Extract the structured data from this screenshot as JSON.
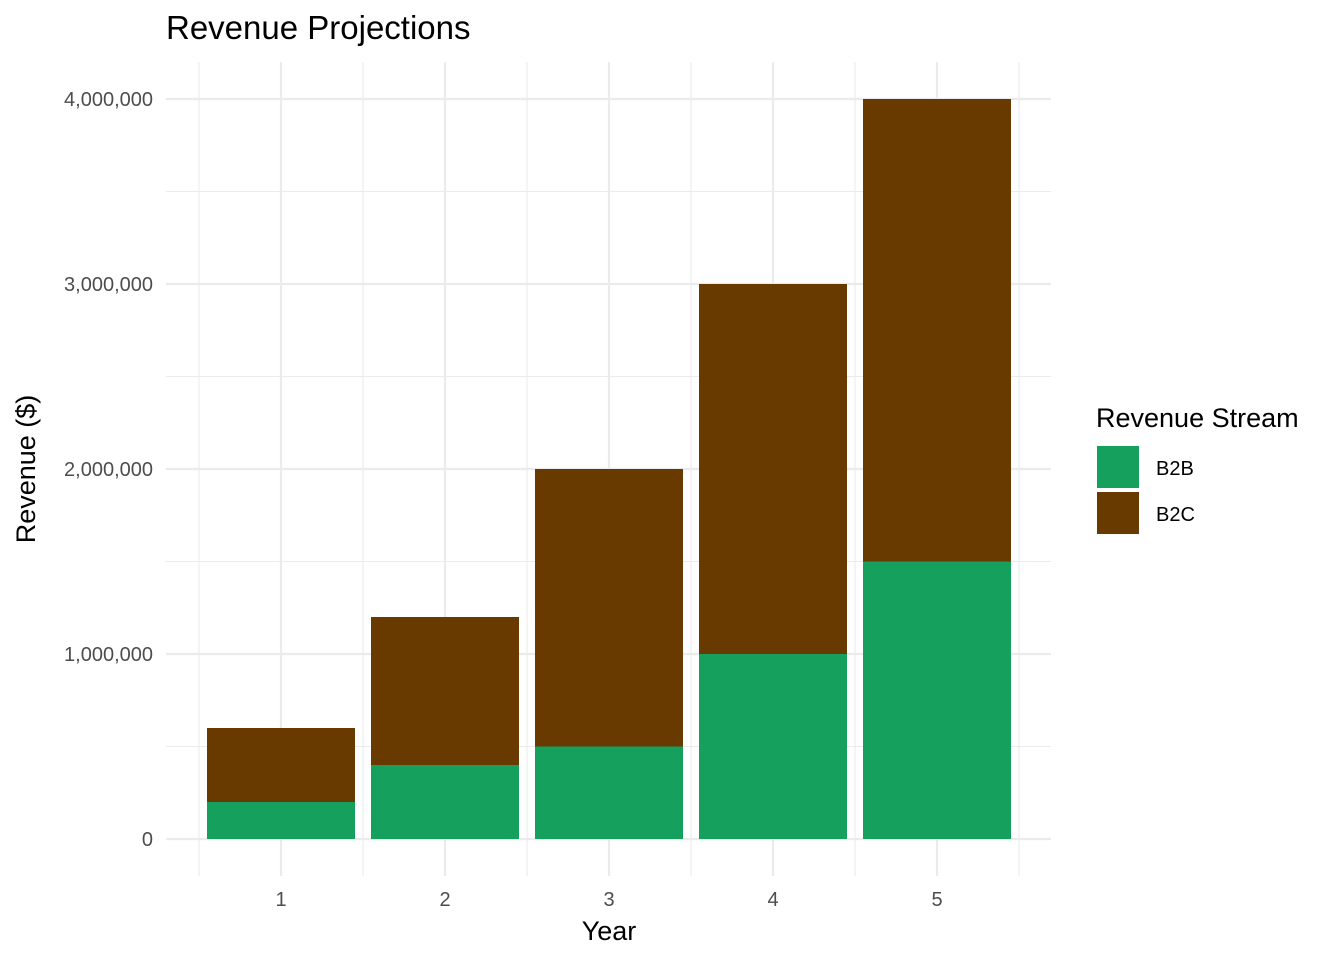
{
  "chart_data": {
    "type": "bar",
    "stacked": true,
    "title": "Revenue Projections",
    "xlabel": "Year",
    "ylabel": "Revenue ($)",
    "categories": [
      "1",
      "2",
      "3",
      "4",
      "5"
    ],
    "series": [
      {
        "name": "B2B",
        "color": "#16a05d",
        "values": [
          200000,
          400000,
          500000,
          1000000,
          1500000
        ]
      },
      {
        "name": "B2C",
        "color": "#693a00",
        "values": [
          400000,
          800000,
          1500000,
          2000000,
          2500000
        ]
      }
    ],
    "ylim": [
      0,
      4000000
    ],
    "y_ticks": [
      0,
      1000000,
      2000000,
      3000000,
      4000000
    ],
    "y_tick_labels": [
      "0",
      "1,000,000",
      "2,000,000",
      "3,000,000",
      "4,000,000"
    ],
    "grid": true,
    "legend": {
      "title": "Revenue Stream",
      "position": "right"
    }
  }
}
